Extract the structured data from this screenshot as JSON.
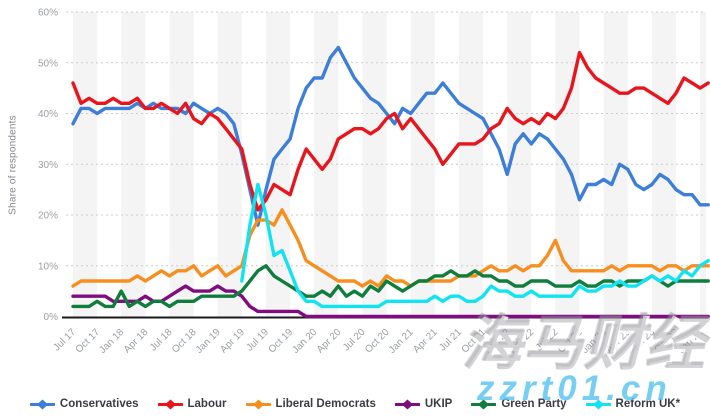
{
  "chart": {
    "y_axis_title": "Share of respondents",
    "y_ticks": [
      "0%",
      "10%",
      "20%",
      "30%",
      "40%",
      "50%",
      "60%"
    ],
    "x_tick_labels": [
      "Jul 17",
      "Oct 17",
      "Jan 18",
      "Apr 18",
      "Jul 18",
      "Oct 18",
      "Jan 19",
      "Apr 19",
      "Jul 19",
      "Oct 19",
      "Jan 20",
      "Apr 20",
      "Jul 20",
      "Oct 20",
      "Jan 21",
      "Apr 21",
      "Jul 21",
      "Oct 21",
      "Jan 22",
      "Apr 22",
      "Jul 22",
      "Oct 22",
      "Jan 23",
      "Apr 23",
      "Jul 23",
      "Oct 23",
      "Jan 24"
    ],
    "style": {
      "band_fill": "#f4f4f4",
      "gridline": "#cccccc",
      "axis_line": "#1a1a1a",
      "tick_label": "#9aa0a8",
      "legend_text": "#3b3b45",
      "watermark_cn_color": "#9e9ea5",
      "watermark_url_color": "#58c4f0"
    }
  },
  "chart_data": {
    "type": "line",
    "title": "",
    "xlabel": "",
    "ylabel": "Share of respondents",
    "unit": "percent",
    "ylim": [
      0,
      60
    ],
    "y_tick_step": 10,
    "grid": "horizontal dotted lines; alternating light-gray quarterly vertical bands",
    "legend_position": "bottom",
    "x_tick_every": 3,
    "x": [
      "Jul 17",
      "Aug 17",
      "Sep 17",
      "Oct 17",
      "Nov 17",
      "Dec 17",
      "Jan 18",
      "Feb 18",
      "Mar 18",
      "Apr 18",
      "May 18",
      "Jun 18",
      "Jul 18",
      "Aug 18",
      "Sep 18",
      "Oct 18",
      "Nov 18",
      "Dec 18",
      "Jan 19",
      "Feb 19",
      "Mar 19",
      "Apr 19",
      "May 19",
      "Jun 19",
      "Jul 19",
      "Aug 19",
      "Sep 19",
      "Oct 19",
      "Nov 19",
      "Dec 19",
      "Jan 20",
      "Feb 20",
      "Mar 20",
      "Apr 20",
      "May 20",
      "Jun 20",
      "Jul 20",
      "Aug 20",
      "Sep 20",
      "Oct 20",
      "Nov 20",
      "Dec 20",
      "Jan 21",
      "Feb 21",
      "Mar 21",
      "Apr 21",
      "May 21",
      "Jun 21",
      "Jul 21",
      "Aug 21",
      "Sep 21",
      "Oct 21",
      "Nov 21",
      "Dec 21",
      "Jan 22",
      "Feb 22",
      "Mar 22",
      "Apr 22",
      "May 22",
      "Jun 22",
      "Jul 22",
      "Aug 22",
      "Sep 22",
      "Oct 22",
      "Nov 22",
      "Dec 22",
      "Jan 23",
      "Feb 23",
      "Mar 23",
      "Apr 23",
      "May 23",
      "Jun 23",
      "Jul 23",
      "Aug 23",
      "Sep 23",
      "Oct 23",
      "Nov 23",
      "Dec 23",
      "Jan 24",
      "Feb 24"
    ],
    "series": [
      {
        "name": "Conservatives",
        "color": "#3d7edb",
        "values": [
          38,
          41,
          41,
          40,
          41,
          41,
          41,
          41,
          42,
          41,
          42,
          41,
          41,
          41,
          40,
          42,
          41,
          40,
          41,
          40,
          38,
          32,
          25,
          18,
          25,
          31,
          33,
          35,
          41,
          45,
          47,
          47,
          51,
          53,
          50,
          47,
          45,
          43,
          42,
          40,
          38,
          41,
          40,
          42,
          44,
          44,
          46,
          44,
          42,
          41,
          40,
          39,
          36,
          33,
          28,
          34,
          36,
          34,
          36,
          35,
          33,
          31,
          28,
          23,
          26,
          26,
          27,
          26,
          30,
          29,
          26,
          25,
          26,
          28,
          27,
          25,
          24,
          24,
          22,
          22
        ]
      },
      {
        "name": "Labour",
        "color": "#e8151d",
        "values": [
          46,
          42,
          43,
          42,
          42,
          43,
          42,
          42,
          43,
          41,
          41,
          42,
          41,
          40,
          42,
          39,
          38,
          40,
          39,
          37,
          35,
          33,
          26,
          21,
          23,
          26,
          25,
          24,
          29,
          33,
          31,
          29,
          31,
          35,
          36,
          37,
          37,
          36,
          37,
          39,
          40,
          37,
          39,
          37,
          35,
          33,
          30,
          32,
          34,
          34,
          34,
          35,
          37,
          38,
          41,
          39,
          38,
          39,
          38,
          40,
          39,
          41,
          45,
          52,
          49,
          47,
          46,
          45,
          44,
          44,
          45,
          45,
          44,
          43,
          42,
          44,
          47,
          46,
          45,
          46
        ]
      },
      {
        "name": "Liberal Democrats",
        "color": "#f78f1e",
        "values": [
          6,
          7,
          7,
          7,
          7,
          7,
          7,
          7,
          8,
          7,
          8,
          9,
          8,
          9,
          9,
          10,
          8,
          9,
          10,
          8,
          9,
          10,
          16,
          19,
          19,
          18,
          21,
          18,
          15,
          11,
          10,
          9,
          8,
          7,
          7,
          7,
          6,
          7,
          6,
          8,
          7,
          7,
          6,
          7,
          7,
          7,
          7,
          7,
          8,
          8,
          8,
          9,
          10,
          9,
          9,
          10,
          9,
          10,
          10,
          12,
          15,
          11,
          9,
          9,
          9,
          9,
          9,
          10,
          9,
          10,
          10,
          10,
          10,
          9,
          10,
          10,
          9,
          10,
          10,
          10
        ]
      },
      {
        "name": "UKIP",
        "color": "#7f0c80",
        "values": [
          4,
          4,
          4,
          4,
          4,
          3,
          3,
          3,
          3,
          4,
          3,
          3,
          4,
          5,
          6,
          5,
          5,
          5,
          6,
          5,
          5,
          4,
          2,
          1,
          1,
          1,
          1,
          1,
          1,
          0,
          0,
          0,
          0,
          0,
          0,
          0,
          0,
          0,
          0,
          0,
          0,
          0,
          0,
          0,
          0,
          0,
          0,
          0,
          0,
          0,
          0,
          0,
          0,
          0,
          0,
          0,
          0,
          0,
          0,
          0,
          0,
          0,
          0,
          0,
          0,
          0,
          0,
          0,
          0,
          0,
          0,
          0,
          0,
          0,
          0,
          0,
          0,
          0,
          0,
          0
        ]
      },
      {
        "name": "Green Party",
        "color": "#0f7d3c",
        "values": [
          2,
          2,
          2,
          3,
          2,
          2,
          5,
          2,
          3,
          2,
          3,
          3,
          2,
          3,
          3,
          3,
          4,
          4,
          4,
          4,
          4,
          5,
          7,
          9,
          10,
          8,
          7,
          6,
          5,
          4,
          4,
          5,
          4,
          6,
          4,
          5,
          4,
          6,
          5,
          7,
          6,
          5,
          6,
          7,
          7,
          8,
          8,
          9,
          8,
          8,
          9,
          8,
          8,
          7,
          7,
          6,
          6,
          7,
          7,
          7,
          6,
          6,
          6,
          7,
          6,
          6,
          7,
          7,
          6,
          7,
          7,
          7,
          8,
          7,
          6,
          7,
          7,
          7,
          7,
          7
        ]
      },
      {
        "name": "Reform UK*",
        "color": "#12e3f0",
        "values": [
          null,
          null,
          null,
          null,
          null,
          null,
          null,
          null,
          null,
          null,
          null,
          null,
          null,
          null,
          null,
          null,
          null,
          null,
          null,
          null,
          null,
          7,
          18,
          26,
          20,
          12,
          13,
          9,
          5,
          3,
          3,
          2,
          2,
          2,
          2,
          2,
          2,
          2,
          2,
          3,
          3,
          3,
          3,
          3,
          3,
          4,
          3,
          4,
          4,
          3,
          3,
          4,
          6,
          5,
          5,
          4,
          4,
          5,
          4,
          4,
          4,
          4,
          4,
          6,
          5,
          5,
          6,
          6,
          7,
          6,
          6,
          7,
          8,
          7,
          8,
          7,
          9,
          8,
          10,
          11
        ]
      }
    ]
  },
  "legend": {
    "items": [
      "Conservatives",
      "Labour",
      "Liberal Democrats",
      "UKIP",
      "Green Party",
      "Reform UK*"
    ]
  },
  "watermarks": {
    "primary": "海马财经",
    "secondary": "zzrt01.cn"
  }
}
